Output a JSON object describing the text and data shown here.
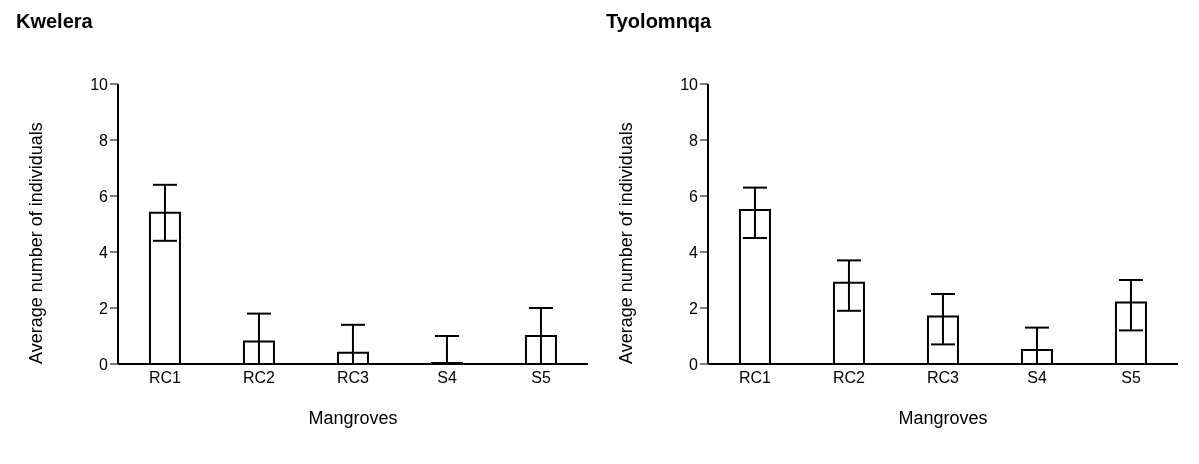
{
  "chart_data": [
    {
      "type": "bar",
      "title": "Kwelera",
      "xlabel": "Mangroves",
      "ylabel": "Average number of individuals",
      "categories": [
        "RC1",
        "RC2",
        "RC3",
        "S4",
        "S5"
      ],
      "values": [
        5.4,
        0.8,
        0.4,
        0,
        1.0
      ],
      "errors": [
        [
          4.4,
          6.4
        ],
        [
          0,
          1.8
        ],
        [
          0,
          1.4
        ],
        [
          0,
          1.0
        ],
        [
          0,
          2.0
        ]
      ],
      "color": "#ffffff",
      "ylim": [
        0,
        10
      ],
      "yticks": [
        0,
        2,
        4,
        6,
        8,
        10
      ],
      "grid": false,
      "legend": false
    },
    {
      "type": "bar",
      "title": "Tyolomnqa",
      "xlabel": "Mangroves",
      "ylabel": "Average number of individuals",
      "categories": [
        "RC1",
        "RC2",
        "RC3",
        "S4",
        "S5"
      ],
      "values": [
        5.5,
        2.9,
        1.7,
        0.5,
        2.2
      ],
      "errors": [
        [
          4.5,
          6.3
        ],
        [
          1.9,
          3.7
        ],
        [
          0.7,
          2.5
        ],
        [
          0,
          1.3
        ],
        [
          1.2,
          3.0
        ]
      ],
      "color": "#ffffff",
      "ylim": [
        0,
        10
      ],
      "yticks": [
        0,
        2,
        4,
        6,
        8,
        10
      ],
      "grid": false,
      "legend": false
    }
  ]
}
